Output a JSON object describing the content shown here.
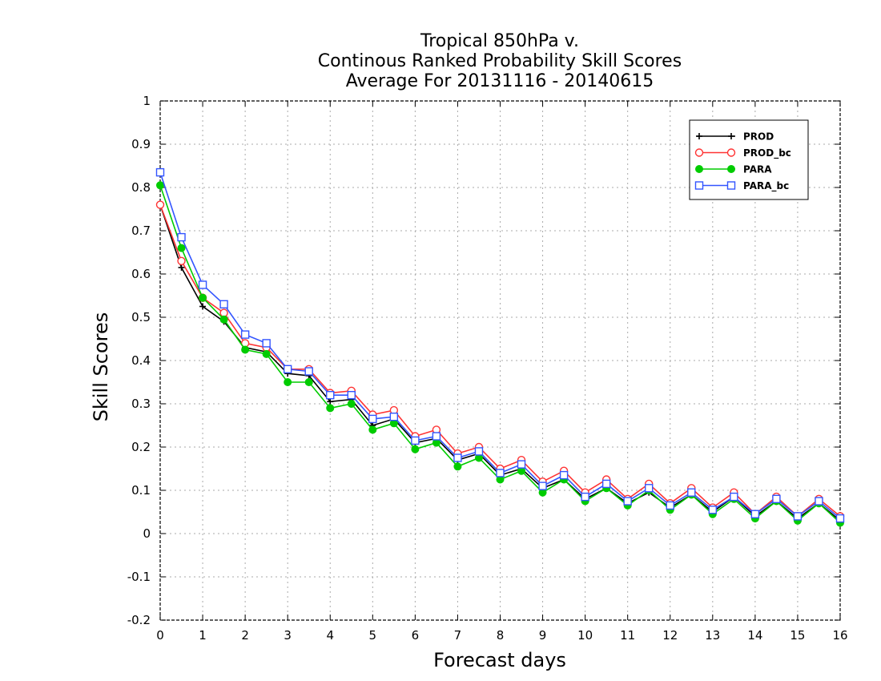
{
  "chart_data": {
    "type": "line",
    "title": [
      "Tropical 850hPa v.",
      "Continous Ranked Probability Skill Scores",
      "Average For 20131116 - 20140615"
    ],
    "xlabel": "Forecast days",
    "ylabel": "Skill Scores",
    "xlim": [
      0,
      16
    ],
    "ylim": [
      -0.2,
      1
    ],
    "xticks": [
      "0",
      "1",
      "2",
      "3",
      "4",
      "5",
      "6",
      "7",
      "8",
      "9",
      "10",
      "11",
      "12",
      "13",
      "14",
      "15",
      "16"
    ],
    "yticks": [
      "-0.2",
      "-0.1",
      "0",
      "0.1",
      "0.2",
      "0.3",
      "0.4",
      "0.5",
      "0.6",
      "0.7",
      "0.8",
      "0.9",
      "1"
    ],
    "grid": true,
    "legend_position": "top-right",
    "x": [
      0,
      0.5,
      1,
      1.5,
      2,
      2.5,
      3,
      3.5,
      4,
      4.5,
      5,
      5.5,
      6,
      6.5,
      7,
      7.5,
      8,
      8.5,
      9,
      9.5,
      10,
      10.5,
      11,
      11.5,
      12,
      12.5,
      13,
      13.5,
      14,
      14.5,
      15,
      15.5,
      16
    ],
    "series": [
      {
        "name": "PROD",
        "color": "#000000",
        "marker": "plus",
        "values": [
          0.76,
          0.615,
          0.525,
          0.49,
          0.43,
          0.42,
          0.37,
          0.365,
          0.305,
          0.31,
          0.25,
          0.265,
          0.21,
          0.22,
          0.17,
          0.185,
          0.135,
          0.15,
          0.105,
          0.125,
          0.08,
          0.105,
          0.07,
          0.095,
          0.06,
          0.09,
          0.05,
          0.085,
          0.04,
          0.075,
          0.035,
          0.07,
          0.03
        ]
      },
      {
        "name": "PROD_bc",
        "color": "#ff3333",
        "marker": "open-circle",
        "values": [
          0.76,
          0.63,
          0.545,
          0.51,
          0.44,
          0.43,
          0.38,
          0.38,
          0.325,
          0.33,
          0.275,
          0.285,
          0.225,
          0.24,
          0.185,
          0.2,
          0.15,
          0.17,
          0.12,
          0.145,
          0.095,
          0.125,
          0.08,
          0.115,
          0.07,
          0.105,
          0.06,
          0.095,
          0.045,
          0.085,
          0.04,
          0.08,
          0.04
        ]
      },
      {
        "name": "PARA",
        "color": "#00cc00",
        "marker": "filled-circle",
        "values": [
          0.805,
          0.66,
          0.545,
          0.495,
          0.425,
          0.415,
          0.35,
          0.35,
          0.29,
          0.3,
          0.24,
          0.255,
          0.195,
          0.21,
          0.155,
          0.175,
          0.125,
          0.145,
          0.095,
          0.125,
          0.075,
          0.105,
          0.065,
          0.1,
          0.055,
          0.09,
          0.045,
          0.08,
          0.035,
          0.075,
          0.03,
          0.07,
          0.025
        ]
      },
      {
        "name": "PARA_bc",
        "color": "#3355ff",
        "marker": "open-square",
        "values": [
          0.835,
          0.685,
          0.575,
          0.53,
          0.46,
          0.44,
          0.38,
          0.375,
          0.32,
          0.32,
          0.265,
          0.27,
          0.215,
          0.225,
          0.175,
          0.19,
          0.14,
          0.16,
          0.11,
          0.135,
          0.085,
          0.115,
          0.075,
          0.105,
          0.065,
          0.095,
          0.055,
          0.085,
          0.045,
          0.08,
          0.04,
          0.075,
          0.035
        ]
      }
    ]
  }
}
